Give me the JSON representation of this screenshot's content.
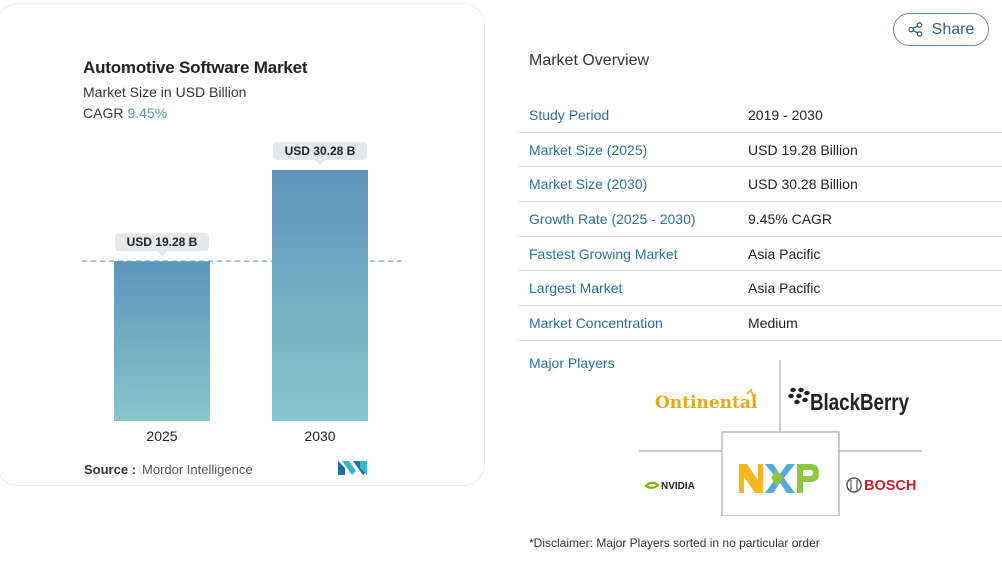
{
  "chart_card": {
    "title": "Automotive Software Market",
    "subtitle": "Market Size in USD Billion",
    "cagr_label": "CAGR",
    "cagr_value": "9.45%",
    "source_label": "Source :",
    "source_value": "Mordor Intelligence"
  },
  "chart_data": {
    "type": "bar",
    "title": "Automotive Software Market",
    "subtitle": "Market Size in USD Billion",
    "categories": [
      "2025",
      "2030"
    ],
    "values": [
      19.28,
      30.28
    ],
    "data_labels": [
      "USD 19.28 B",
      "USD 30.28 B"
    ],
    "ylim": [
      0,
      30.28
    ],
    "reference_line": 19.28,
    "grid": false,
    "colors": {
      "bar_top": "#5f94bb",
      "bar_bottom": "#86c6cb",
      "label_bg": "#e3e8ec",
      "ref_line": "#8fb7c6"
    }
  },
  "share_button": {
    "label": "Share",
    "icon": "share-icon"
  },
  "overview": {
    "title": "Market Overview",
    "rows": [
      {
        "label": "Study Period",
        "value": "2019 - 2030"
      },
      {
        "label": "Market Size (2025)",
        "value": "USD 19.28 Billion"
      },
      {
        "label": "Market Size (2030)",
        "value": "USD 30.28 Billion"
      },
      {
        "label": "Growth Rate (2025 - 2030)",
        "value": "9.45% CAGR"
      },
      {
        "label": "Fastest Growing Market",
        "value": "Asia Pacific"
      },
      {
        "label": "Largest Market",
        "value": "Asia Pacific"
      },
      {
        "label": "Market Concentration",
        "value": "Medium"
      }
    ],
    "players_label": "Major Players",
    "players": {
      "continental": "Ontinental",
      "blackberry": "BlackBerry",
      "nvidia": "NVIDIA",
      "nxp": "NXP",
      "bosch": "BOSCH"
    },
    "disclaimer": "*Disclaimer: Major Players sorted in no particular order"
  }
}
